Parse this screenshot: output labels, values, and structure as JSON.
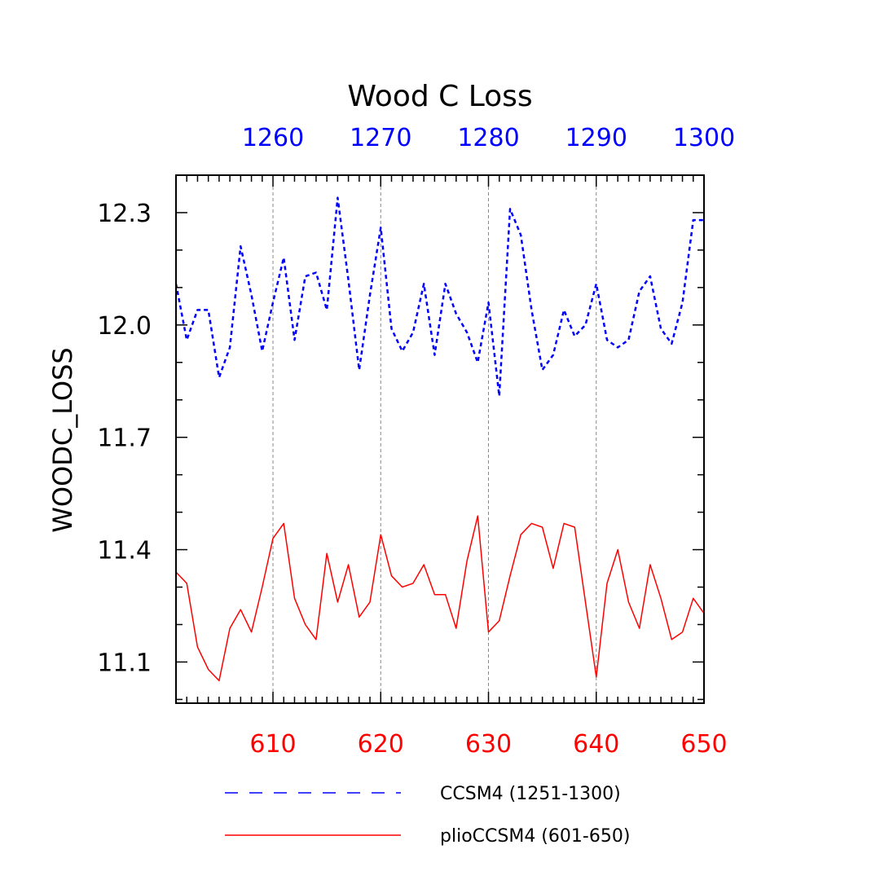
{
  "chart_data": {
    "type": "line",
    "title": "Wood C Loss",
    "ylabel": "WOODC_LOSS",
    "ylim": [
      10.99,
      12.4
    ],
    "yticks_major": [
      11.1,
      11.4,
      11.7,
      12.0,
      12.3
    ],
    "ytick_labels": [
      "11.1",
      "11.4",
      "11.7",
      "12.0",
      "12.3"
    ],
    "ytick_minor_step": 0.1,
    "grid": "vertical dashed at labeled x ticks",
    "bottom_axis": {
      "range": [
        601,
        650
      ],
      "ticks": [
        610,
        620,
        630,
        640,
        650
      ],
      "tick_labels": [
        "610",
        "620",
        "630",
        "640",
        "650"
      ],
      "color": "#ff0000"
    },
    "top_axis": {
      "range": [
        1251,
        1300
      ],
      "ticks": [
        1260,
        1270,
        1280,
        1290,
        1300
      ],
      "tick_labels": [
        "1260",
        "1270",
        "1280",
        "1290",
        "1300"
      ],
      "color": "#0000ff"
    },
    "legend": {
      "placement": "bottom"
    },
    "series": [
      {
        "name": "CCSM4 (1251-1300)",
        "axis": "top",
        "color": "#0000ff",
        "style": "dashed",
        "x": [
          1251,
          1252,
          1253,
          1254,
          1255,
          1256,
          1257,
          1258,
          1259,
          1260,
          1261,
          1262,
          1263,
          1264,
          1265,
          1266,
          1267,
          1268,
          1269,
          1270,
          1271,
          1272,
          1273,
          1274,
          1275,
          1276,
          1277,
          1278,
          1279,
          1280,
          1281,
          1282,
          1283,
          1284,
          1285,
          1286,
          1287,
          1288,
          1289,
          1290,
          1291,
          1292,
          1293,
          1294,
          1295,
          1296,
          1297,
          1298,
          1299,
          1300
        ],
        "values": [
          12.11,
          11.96,
          12.04,
          12.04,
          11.86,
          11.94,
          12.21,
          12.08,
          11.93,
          12.06,
          12.18,
          11.96,
          12.13,
          12.14,
          12.04,
          12.34,
          12.12,
          11.88,
          12.08,
          12.26,
          11.99,
          11.93,
          11.98,
          12.11,
          11.92,
          12.11,
          12.03,
          11.98,
          11.9,
          12.06,
          11.81,
          12.31,
          12.24,
          12.04,
          11.88,
          11.92,
          12.04,
          11.97,
          12.0,
          12.11,
          11.96,
          11.94,
          11.96,
          12.09,
          12.13,
          11.99,
          11.95,
          12.06,
          12.28,
          12.28
        ]
      },
      {
        "name": "plioCCSM4 (601-650)",
        "axis": "bottom",
        "color": "#ff0000",
        "style": "solid",
        "x": [
          601,
          602,
          603,
          604,
          605,
          606,
          607,
          608,
          609,
          610,
          611,
          612,
          613,
          614,
          615,
          616,
          617,
          618,
          619,
          620,
          621,
          622,
          623,
          624,
          625,
          626,
          627,
          628,
          629,
          630,
          631,
          632,
          633,
          634,
          635,
          636,
          637,
          638,
          639,
          640,
          641,
          642,
          643,
          644,
          645,
          646,
          647,
          648,
          649,
          650
        ],
        "values": [
          11.34,
          11.31,
          11.14,
          11.08,
          11.05,
          11.19,
          11.24,
          11.18,
          11.3,
          11.43,
          11.47,
          11.27,
          11.2,
          11.16,
          11.39,
          11.26,
          11.36,
          11.22,
          11.26,
          11.44,
          11.33,
          11.3,
          11.31,
          11.36,
          11.28,
          11.28,
          11.19,
          11.37,
          11.49,
          11.18,
          11.21,
          11.33,
          11.44,
          11.47,
          11.46,
          11.35,
          11.47,
          11.46,
          11.26,
          11.06,
          11.31,
          11.4,
          11.26,
          11.19,
          11.36,
          11.27,
          11.16,
          11.18,
          11.27,
          11.23
        ]
      }
    ]
  }
}
